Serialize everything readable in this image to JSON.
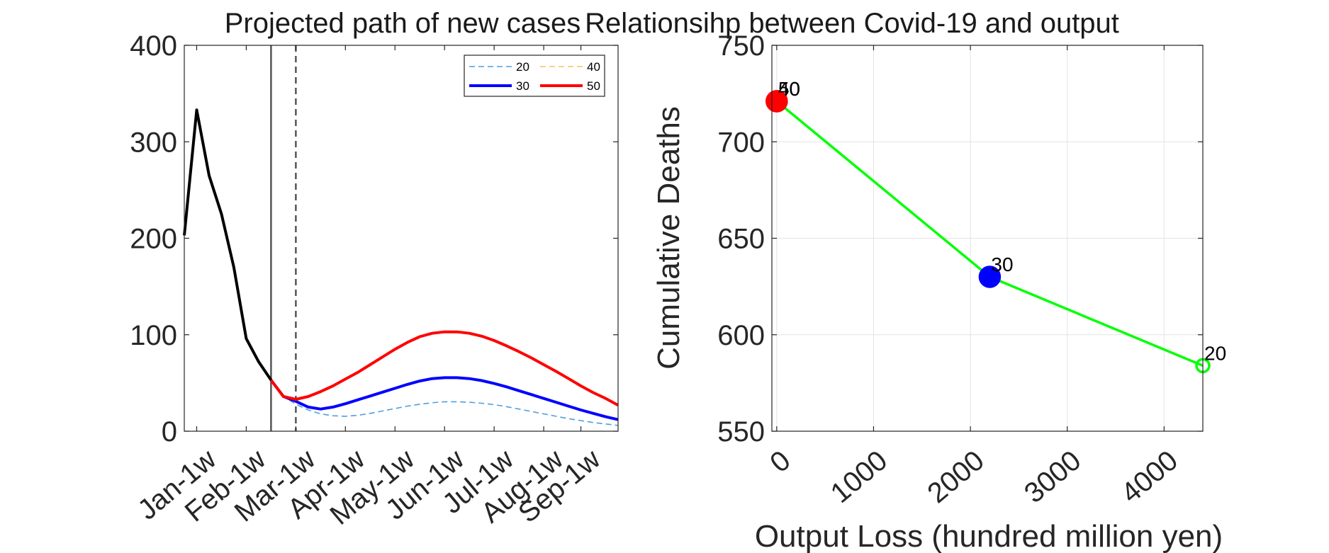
{
  "chart_data": [
    {
      "type": "line",
      "title": "Projected path of new cases",
      "xlabel": "",
      "ylabel": "",
      "ylim": [
        0,
        400
      ],
      "y_ticks": [
        0,
        100,
        200,
        300,
        400
      ],
      "x_tick_labels": [
        "Jan-1w",
        "Feb-1w",
        "Mar-1w",
        "Apr-1w",
        "May-1w",
        "Jun-1w",
        "Jul-1w",
        "Aug-1w",
        "Sep-1w"
      ],
      "x_tick_weeks": [
        1,
        5,
        9,
        13,
        17,
        21,
        25,
        29,
        32
      ],
      "x_range_weeks": [
        0,
        35
      ],
      "vertical_lines": [
        {
          "week": 7,
          "style": "solid",
          "color": "#555555"
        },
        {
          "week": 9,
          "style": "dashed",
          "color": "#555555"
        }
      ],
      "history": {
        "color": "#000000",
        "weeks": [
          0,
          1,
          2,
          3,
          4,
          5,
          6,
          7
        ],
        "values": [
          203,
          333,
          265,
          225,
          170,
          96,
          72,
          53
        ]
      },
      "legend": {
        "position": "top-right",
        "columns": 2
      },
      "series": [
        {
          "name": "20",
          "color": "#4f9fdc",
          "style": "dashed",
          "width": 1.6,
          "weeks": [
            7,
            8,
            9,
            10,
            11,
            12,
            13,
            14,
            15,
            16,
            17,
            18,
            19,
            20,
            21,
            22,
            23,
            24,
            25,
            26,
            27,
            28,
            29,
            30,
            31,
            32,
            33,
            34,
            35
          ],
          "values": [
            53,
            36,
            28,
            22,
            18,
            16,
            15.5,
            16.5,
            18.5,
            21,
            23.5,
            26,
            28,
            29.5,
            30.5,
            30.5,
            30,
            29,
            27.5,
            25.5,
            23,
            20.5,
            18,
            15.5,
            13,
            11,
            9,
            7.5,
            6
          ]
        },
        {
          "name": "40",
          "color": "#f2c463",
          "style": "dashed",
          "width": 1.6,
          "weeks": [],
          "values": []
        },
        {
          "name": "30",
          "color": "#0000ff",
          "style": "solid",
          "width": 4,
          "weeks": [
            7,
            8,
            9,
            10,
            11,
            12,
            13,
            14,
            15,
            16,
            17,
            18,
            19,
            20,
            21,
            22,
            23,
            24,
            25,
            26,
            27,
            28,
            29,
            30,
            31,
            32,
            33,
            34,
            35
          ],
          "values": [
            53,
            36,
            31,
            25,
            23,
            25,
            28.5,
            32.5,
            36.5,
            40.5,
            44.5,
            48.5,
            52,
            54.5,
            55.5,
            55.5,
            54.5,
            52.5,
            49.5,
            46,
            42,
            38,
            34,
            30,
            26,
            22,
            18.5,
            15,
            12
          ]
        },
        {
          "name": "50",
          "color": "#ff0000",
          "style": "solid",
          "width": 4,
          "weeks": [
            7,
            8,
            9,
            10,
            11,
            12,
            13,
            14,
            15,
            16,
            17,
            18,
            19,
            20,
            21,
            22,
            23,
            24,
            25,
            26,
            27,
            28,
            29,
            30,
            31,
            32,
            33,
            34,
            35
          ],
          "values": [
            53,
            36,
            33,
            36,
            41,
            47,
            54,
            61,
            69,
            77,
            85,
            92,
            98,
            101.5,
            103,
            103,
            101.5,
            98.5,
            94,
            88.5,
            82.5,
            76,
            69,
            62,
            54.5,
            47,
            40,
            34,
            27
          ]
        }
      ]
    },
    {
      "type": "scatter",
      "title": "Relationsihp between Covid-19 and output",
      "xlabel": "Output Loss (hundred million yen)",
      "ylabel": "Cumulative Deaths",
      "xlim": [
        -50,
        4400
      ],
      "ylim": [
        550,
        750
      ],
      "x_ticks": [
        0,
        1000,
        2000,
        3000,
        4000
      ],
      "y_ticks": [
        550,
        600,
        650,
        700,
        750
      ],
      "grid": true,
      "line_color": "#00ff00",
      "points": [
        {
          "label": "50",
          "x": 0,
          "y": 721,
          "color": "#ff0000",
          "filled": true,
          "size": "large"
        },
        {
          "label": "40",
          "x": 0,
          "y": 721,
          "color": "#ff0000",
          "filled": true,
          "size": "large"
        },
        {
          "label": "30",
          "x": 2200,
          "y": 630,
          "color": "#0000ff",
          "filled": true,
          "size": "large"
        },
        {
          "label": "20",
          "x": 4400,
          "y": 584,
          "color": "#00ff00",
          "filled": false,
          "size": "small"
        }
      ]
    }
  ]
}
